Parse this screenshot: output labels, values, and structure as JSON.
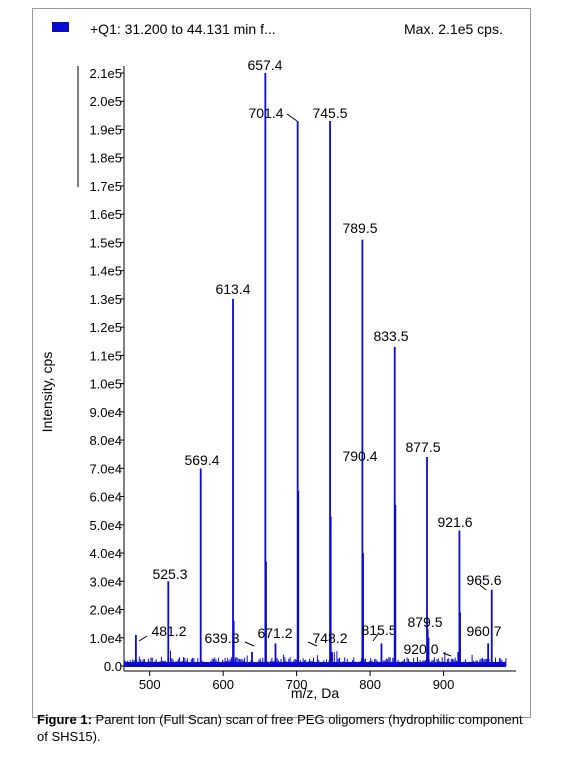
{
  "header": {
    "legend": "+Q1: 31.200 to 44.131 min f...",
    "max": "Max. 2.1e5 cps."
  },
  "caption": {
    "label": "Figure 1:",
    "text": "Parent Ion (Full Scan) scan of free PEG oligomers (hydrophilic component of SHS15)."
  },
  "chart_data": {
    "type": "bar",
    "xlabel": "m/z, Da",
    "ylabel": "Intensity, cps",
    "xlim": [
      465,
      985
    ],
    "ylim": [
      0,
      210000
    ],
    "x_ticks": [
      500,
      600,
      700,
      800,
      900
    ],
    "y_ticks": [
      {
        "v": 0,
        "label": "0.0"
      },
      {
        "v": 10000,
        "label": "1.0e4"
      },
      {
        "v": 20000,
        "label": "2.0e4"
      },
      {
        "v": 30000,
        "label": "3.0e4"
      },
      {
        "v": 40000,
        "label": "4.0e4"
      },
      {
        "v": 50000,
        "label": "5.0e4"
      },
      {
        "v": 60000,
        "label": "6.0e4"
      },
      {
        "v": 70000,
        "label": "7.0e4"
      },
      {
        "v": 80000,
        "label": "8.0e4"
      },
      {
        "v": 90000,
        "label": "9.0e4"
      },
      {
        "v": 100000,
        "label": "1.0e5"
      },
      {
        "v": 110000,
        "label": "1.1e5"
      },
      {
        "v": 120000,
        "label": "1.2e5"
      },
      {
        "v": 130000,
        "label": "1.3e5"
      },
      {
        "v": 140000,
        "label": "1.4e5"
      },
      {
        "v": 150000,
        "label": "1.5e5"
      },
      {
        "v": 160000,
        "label": "1.6e5"
      },
      {
        "v": 170000,
        "label": "1.7e5"
      },
      {
        "v": 180000,
        "label": "1.8e5"
      },
      {
        "v": 190000,
        "label": "1.9e5"
      },
      {
        "v": 200000,
        "label": "2.0e5"
      },
      {
        "v": 210000,
        "label": "2.1e5"
      }
    ],
    "color": "#0a0ad0",
    "peaks": [
      {
        "mz": 481.2,
        "y": 11000,
        "label": "481.2"
      },
      {
        "mz": 525.3,
        "y": 30000,
        "label": "525.3"
      },
      {
        "mz": 569.4,
        "y": 70000,
        "label": "569.4"
      },
      {
        "mz": 613.4,
        "y": 130000,
        "label": "613.4"
      },
      {
        "mz": 639.3,
        "y": 5000,
        "label": "639.3"
      },
      {
        "mz": 657.4,
        "y": 210000,
        "label": "657.4"
      },
      {
        "mz": 671.2,
        "y": 8000,
        "label": "671.2"
      },
      {
        "mz": 701.4,
        "y": 193000,
        "label": "701.4"
      },
      {
        "mz": 745.5,
        "y": 193000,
        "label": "745.5"
      },
      {
        "mz": 748.2,
        "y": 5000,
        "label": "748.2"
      },
      {
        "mz": 789.5,
        "y": 151000,
        "label": "789.5"
      },
      {
        "mz": 790.4,
        "y": 40000,
        "label": "790.4"
      },
      {
        "mz": 815.5,
        "y": 8000,
        "label": "815.5"
      },
      {
        "mz": 833.5,
        "y": 113000,
        "label": "833.5"
      },
      {
        "mz": 877.5,
        "y": 74000,
        "label": "877.5"
      },
      {
        "mz": 879.5,
        "y": 10000,
        "label": "879.5"
      },
      {
        "mz": 920.0,
        "y": 5000,
        "label": "920.0"
      },
      {
        "mz": 921.6,
        "y": 48000,
        "label": "921.6"
      },
      {
        "mz": 960.7,
        "y": 8000,
        "label": "960.7"
      },
      {
        "mz": 965.6,
        "y": 27000,
        "label": "965.6"
      }
    ],
    "minor_peaks": [
      {
        "mz": 614.4,
        "y": 16000
      },
      {
        "mz": 658.4,
        "y": 37000
      },
      {
        "mz": 702.4,
        "y": 62000
      },
      {
        "mz": 746.5,
        "y": 53000
      },
      {
        "mz": 834.5,
        "y": 57000
      },
      {
        "mz": 878.5,
        "y": 13000
      },
      {
        "mz": 922.6,
        "y": 19000
      }
    ]
  }
}
